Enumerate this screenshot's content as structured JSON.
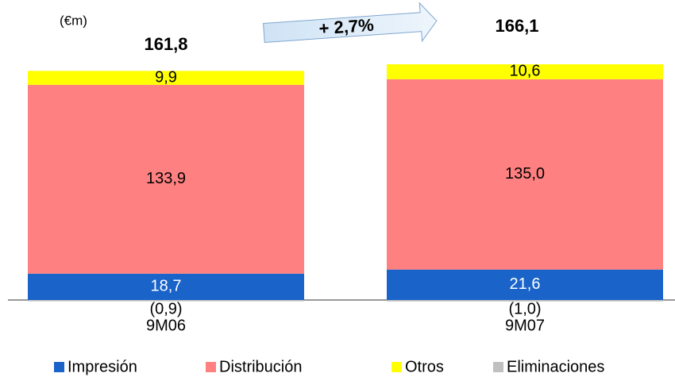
{
  "chart_data": {
    "type": "stacked_bar",
    "unit_label": "(€m)",
    "annotation": "+ 2,7%",
    "categories": [
      "9M06",
      "9M07"
    ],
    "series": [
      {
        "name": "Impresión",
        "color": "#1a63c9",
        "values": [
          18.7,
          21.6
        ],
        "value_labels": [
          "18,7",
          "21,6"
        ]
      },
      {
        "name": "Distribución",
        "color": "#ff8080",
        "values": [
          133.9,
          135.0
        ],
        "value_labels": [
          "133,9",
          "135,0"
        ]
      },
      {
        "name": "Otros",
        "color": "#ffff00",
        "values": [
          9.9,
          10.6
        ],
        "value_labels": [
          "9,9",
          "10,6"
        ]
      },
      {
        "name": "Eliminaciones",
        "color": "#c0c0c0",
        "values": [
          -0.9,
          -1.0
        ],
        "value_labels": [
          "(0,9)",
          "(1,0)"
        ]
      }
    ],
    "totals": {
      "values": [
        161.8,
        166.1
      ],
      "value_labels": [
        "161,8",
        "166,1"
      ]
    }
  }
}
